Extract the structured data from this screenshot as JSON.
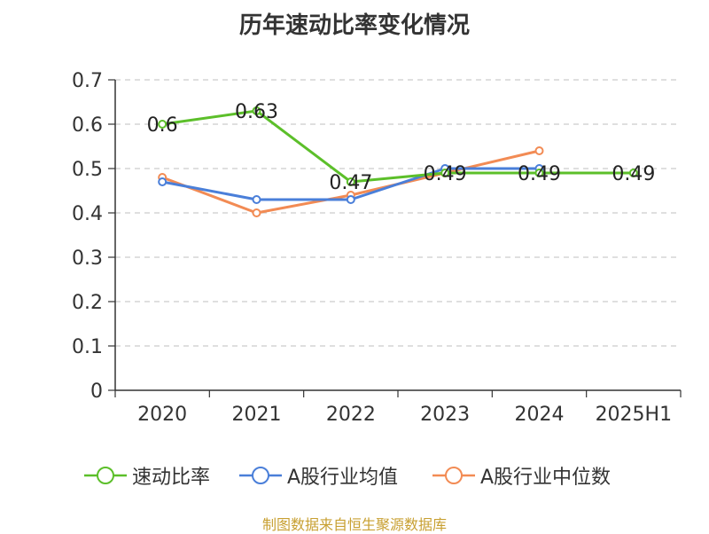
{
  "chart_data": {
    "type": "line",
    "title": "历年速动比率变化情况",
    "categories": [
      "2020",
      "2021",
      "2022",
      "2023",
      "2024",
      "2025H1"
    ],
    "ylim": [
      0,
      0.7
    ],
    "yticks": [
      "0",
      "0.1",
      "0.2",
      "0.3",
      "0.4",
      "0.5",
      "0.6",
      "0.7"
    ],
    "grid": true,
    "legend_position": "bottom",
    "series": [
      {
        "name": "速动比率",
        "color": "#5cbf2a",
        "values": [
          0.6,
          0.63,
          0.47,
          0.49,
          0.49,
          0.49
        ],
        "labels": [
          "0.6",
          "0.63",
          "0.47",
          "0.49",
          "0.49",
          "0.49"
        ]
      },
      {
        "name": "A股行业均值",
        "color": "#4a7fd9",
        "values": [
          0.47,
          0.43,
          0.43,
          0.5,
          0.5,
          null
        ]
      },
      {
        "name": "A股行业中位数",
        "color": "#f28b54",
        "values": [
          0.48,
          0.4,
          0.44,
          0.49,
          0.54,
          null
        ]
      }
    ]
  },
  "source": "制图数据来自恒生聚源数据库"
}
